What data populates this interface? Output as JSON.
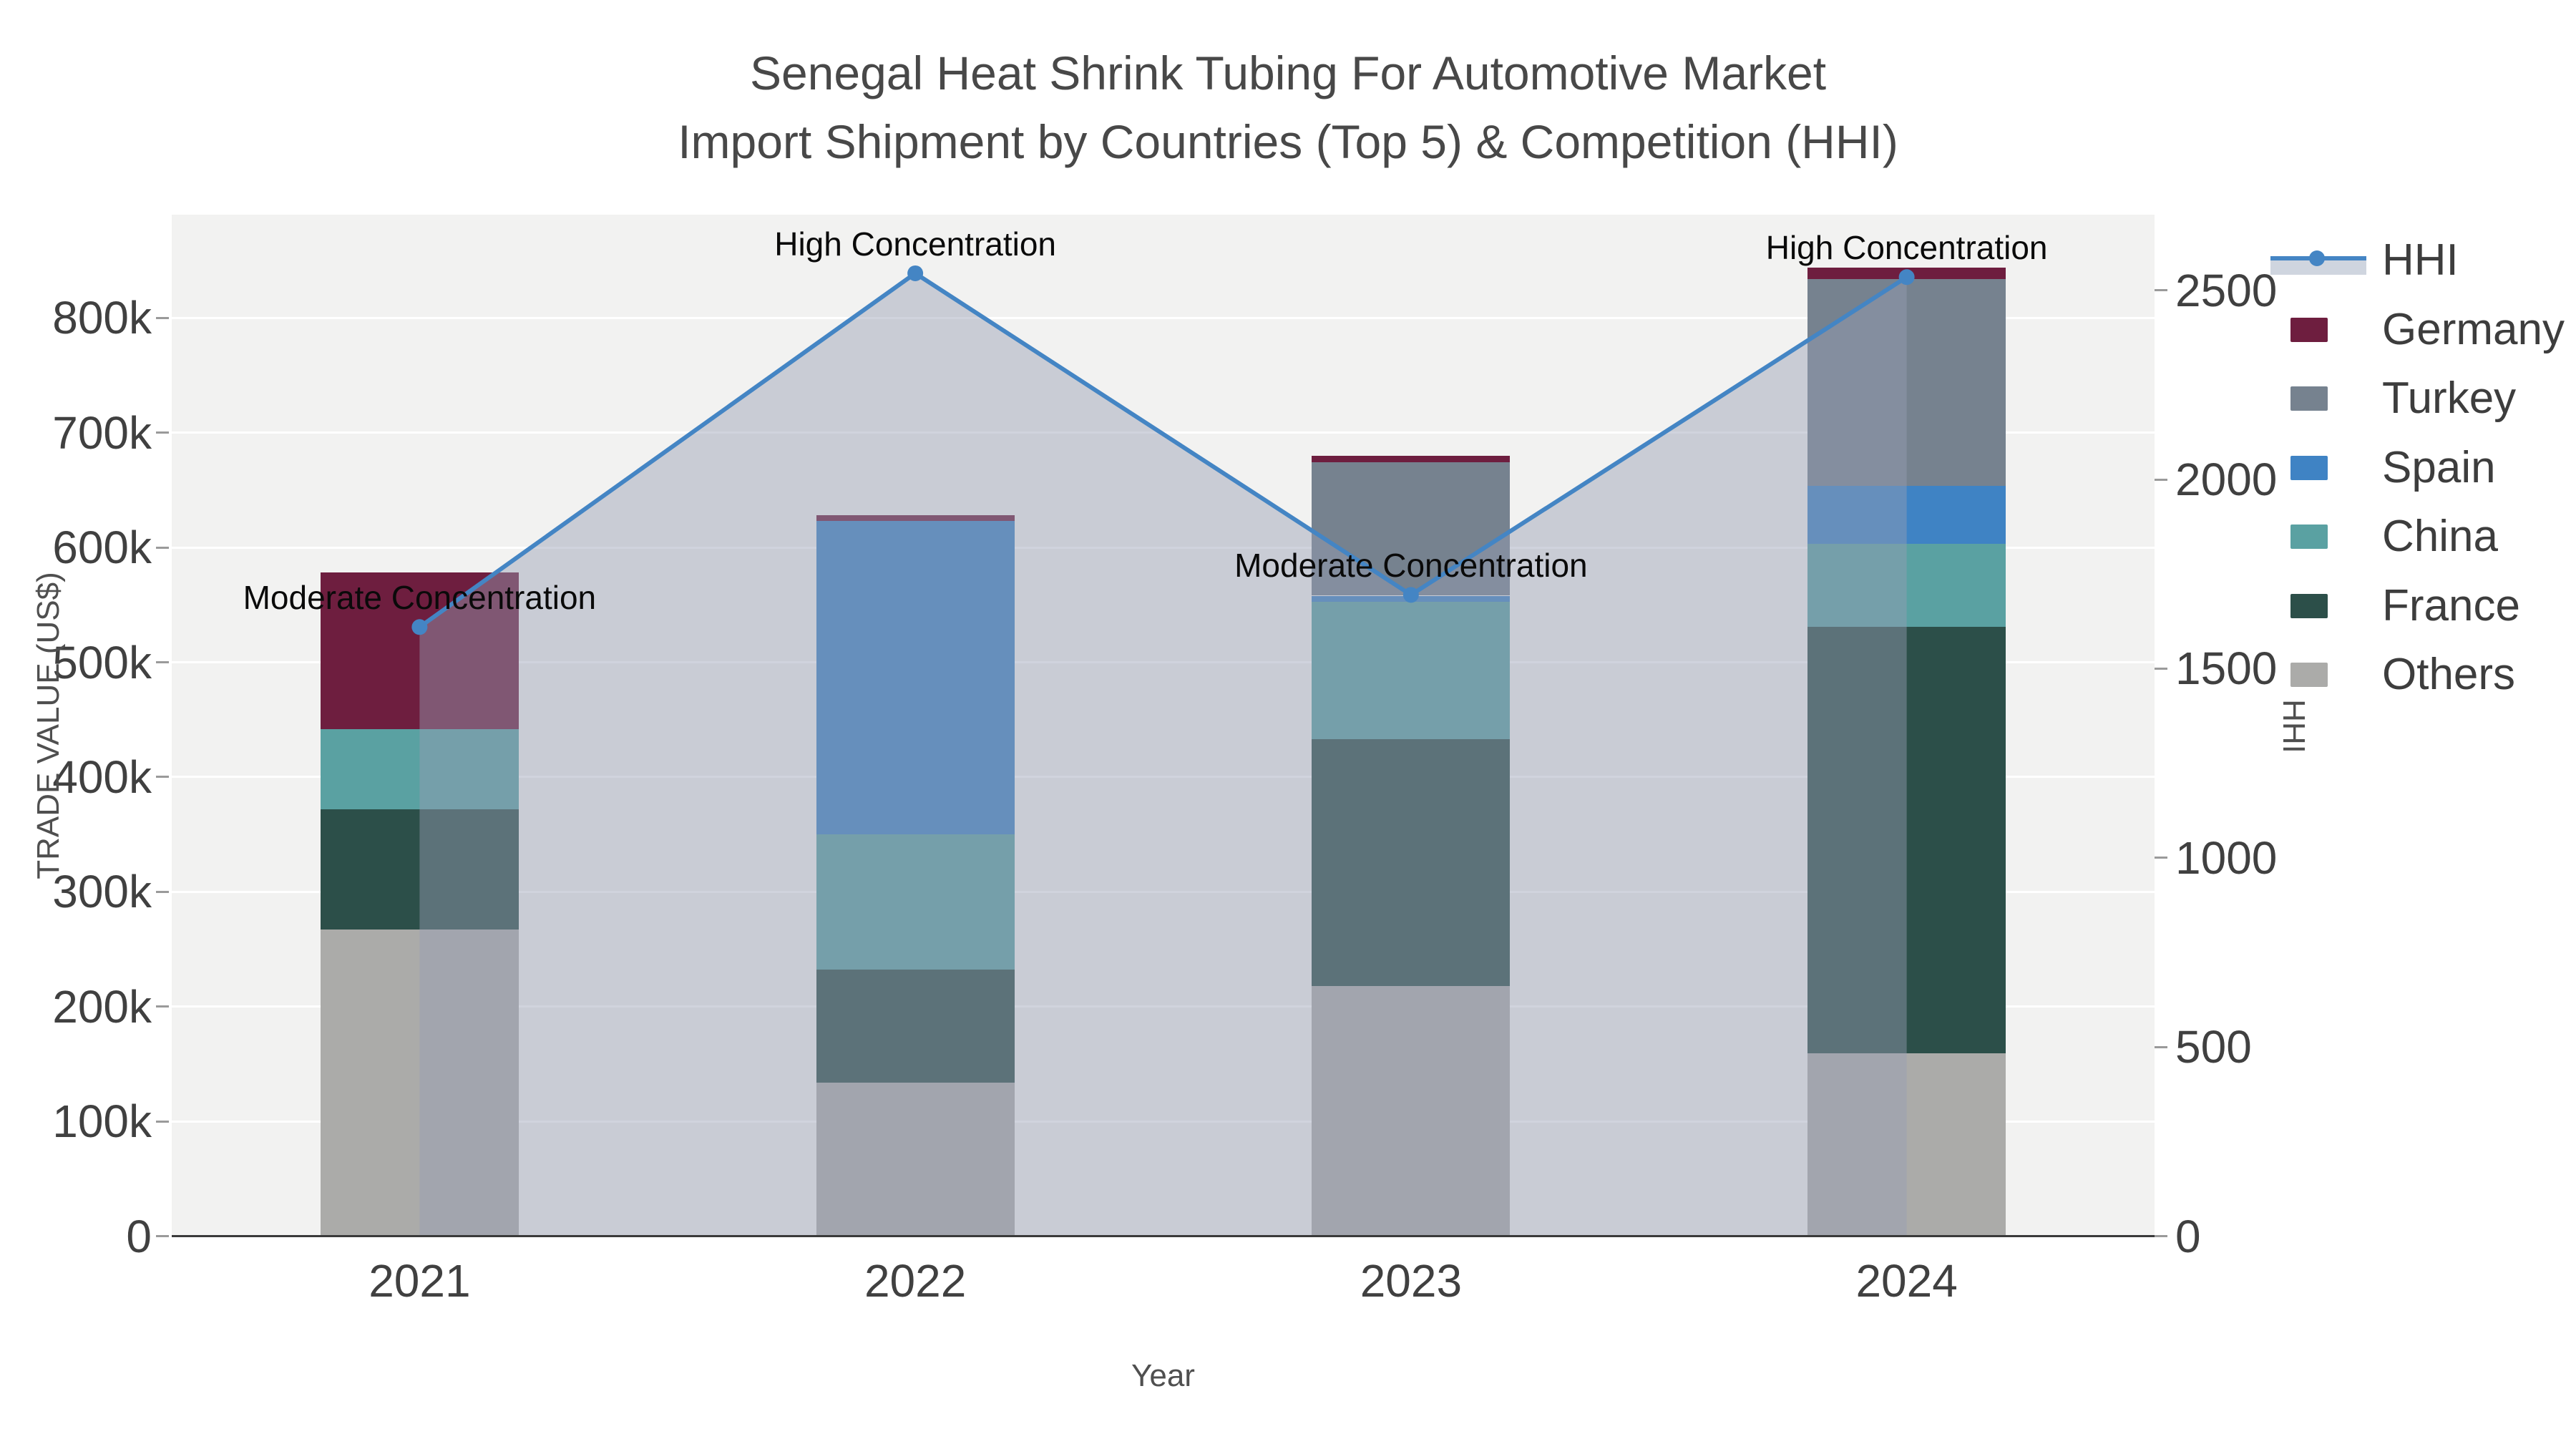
{
  "title": {
    "line1": "Senegal Heat Shrink Tubing For Automotive Market",
    "line2": "Import Shipment by Countries (Top 5) & Competition (HHI)"
  },
  "axes": {
    "x": {
      "title": "Year",
      "ticks": [
        "2021",
        "2022",
        "2023",
        "2024"
      ]
    },
    "y_left": {
      "title": "TRADE VALUE (US$)",
      "tick_values": [
        0,
        100000,
        200000,
        300000,
        400000,
        500000,
        600000,
        700000,
        800000
      ],
      "tick_labels": [
        "0",
        "100k",
        "200k",
        "300k",
        "400k",
        "500k",
        "600k",
        "700k",
        "800k"
      ]
    },
    "y_right": {
      "title": "HHI",
      "tick_values": [
        0,
        500,
        1000,
        1500,
        2000,
        2500
      ],
      "tick_labels": [
        "0",
        "500",
        "1000",
        "1500",
        "2000",
        "2500"
      ]
    }
  },
  "legend": {
    "items": [
      {
        "label": "HHI",
        "type": "line",
        "color": "#4485C4"
      },
      {
        "label": "Germany",
        "type": "swatch",
        "color": "#6E1E3F"
      },
      {
        "label": "Turkey",
        "type": "swatch",
        "color": "#76828F"
      },
      {
        "label": "Spain",
        "type": "swatch",
        "color": "#3F83C4"
      },
      {
        "label": "China",
        "type": "swatch",
        "color": "#5AA1A2"
      },
      {
        "label": "France",
        "type": "swatch",
        "color": "#2C4F49"
      },
      {
        "label": "Others",
        "type": "swatch",
        "color": "#ABABA9"
      }
    ]
  },
  "annotations": [
    {
      "text": "Moderate Concentration",
      "year_index": 0
    },
    {
      "text": "High Concentration",
      "year_index": 1
    },
    {
      "text": "Moderate Concentration",
      "year_index": 2
    },
    {
      "text": "High Concentration",
      "year_index": 3
    }
  ],
  "chart_data": {
    "type": "combo",
    "bar_mode": "stacked",
    "categories": [
      "2021",
      "2022",
      "2023",
      "2024"
    ],
    "stack_order_note": "series listed bottom-to-top of the stack",
    "series": [
      {
        "name": "Others",
        "color": "#ABABA9",
        "values": [
          267000,
          134000,
          218000,
          159000
        ]
      },
      {
        "name": "France",
        "color": "#2C4F49",
        "values": [
          105000,
          98000,
          215000,
          372000
        ]
      },
      {
        "name": "China",
        "color": "#5AA1A2",
        "values": [
          70000,
          118000,
          120000,
          72000
        ]
      },
      {
        "name": "Spain",
        "color": "#3F83C4",
        "values": [
          0,
          273000,
          5000,
          51000
        ]
      },
      {
        "name": "Turkey",
        "color": "#76828F",
        "values": [
          0,
          0,
          116000,
          180000
        ]
      },
      {
        "name": "Germany",
        "color": "#6E1E3F",
        "values": [
          136000,
          5000,
          6000,
          10000
        ]
      }
    ],
    "hhi": {
      "name": "HHI",
      "values": [
        1610,
        2545,
        1695,
        2535
      ],
      "color": "#4485C4",
      "area_fill": "rgba(150,158,180,0.45)",
      "legend_band_color": "#CFD5DF"
    },
    "ylim_left": [
      0,
      890000
    ],
    "ylim_right": [
      0,
      2700
    ],
    "grid": true,
    "legend_position": "right"
  },
  "style": {
    "plot_bg": "#F2F2F1",
    "grid_color": "#FFFFFF",
    "axis_line_color": "#3A3A3A",
    "tick_color": "#404040",
    "title_color": "#484848",
    "annotation_color": "#0a0a0a"
  }
}
